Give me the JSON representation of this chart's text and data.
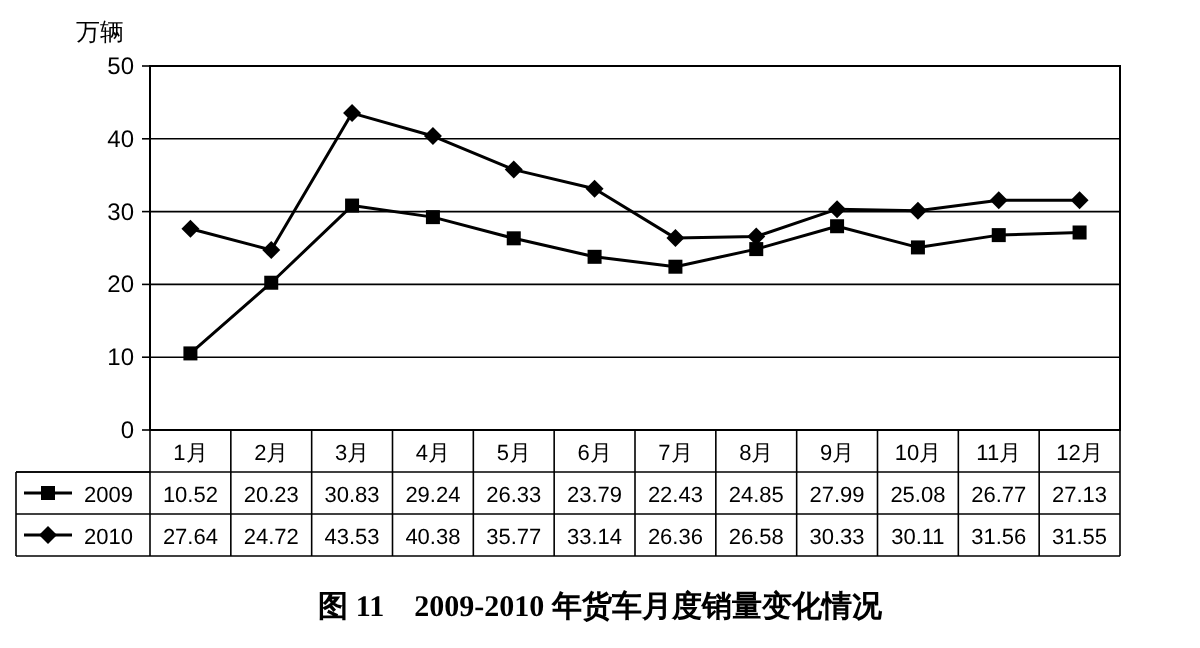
{
  "chart_data": {
    "type": "line",
    "title": "图 11　2009-2010 年货车月度销量变化情况",
    "ylabel": "万辆",
    "categories": [
      "1月",
      "2月",
      "3月",
      "4月",
      "5月",
      "6月",
      "7月",
      "8月",
      "9月",
      "10月",
      "11月",
      "12月"
    ],
    "series": [
      {
        "name": "2009",
        "color": "#000000",
        "marker": "square",
        "values": [
          10.52,
          20.23,
          30.83,
          29.24,
          26.33,
          23.79,
          22.43,
          24.85,
          27.99,
          25.08,
          26.77,
          27.13
        ]
      },
      {
        "name": "2010",
        "color": "#000000",
        "marker": "diamond",
        "values": [
          27.64,
          24.72,
          43.53,
          40.38,
          35.77,
          33.14,
          26.36,
          26.58,
          30.33,
          30.11,
          31.56,
          31.55
        ]
      }
    ],
    "ylim": [
      0,
      50
    ],
    "yticks": [
      0,
      10,
      20,
      30,
      40,
      50
    ],
    "grid": "y",
    "legend": "bottom left",
    "data_labels": true
  }
}
